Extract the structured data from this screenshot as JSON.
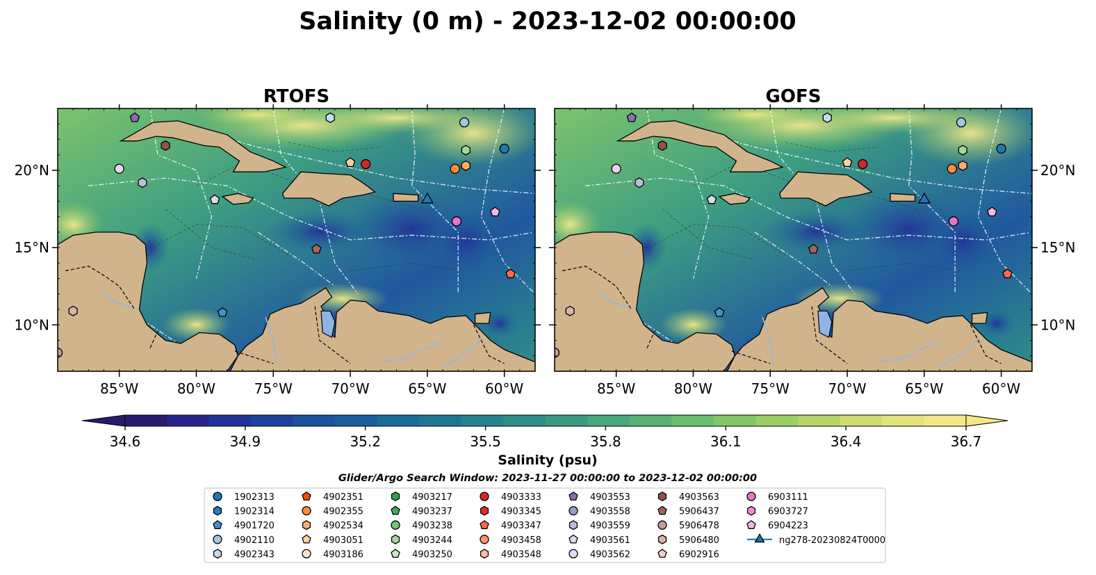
{
  "figure": {
    "title": "Salinity (0 m) - 2023-12-02 00:00:00",
    "colorbar_label": "Salinity (psu)",
    "search_window": "Glider/Argo Search Window: 2023-11-27 00:00:00 to 2023-12-02 00:00:00"
  },
  "chart_data": {
    "type": "heatmap",
    "variable": "Salinity",
    "units": "psu",
    "depth": "0 m",
    "panels": [
      {
        "title": "RTOFS"
      },
      {
        "title": "GOFS"
      }
    ],
    "lon_range": [
      -89,
      -58
    ],
    "lat_range": [
      7,
      24
    ],
    "x_ticks": [
      {
        "value": -85,
        "label": "85°W"
      },
      {
        "value": -80,
        "label": "80°W"
      },
      {
        "value": -75,
        "label": "75°W"
      },
      {
        "value": -70,
        "label": "70°W"
      },
      {
        "value": -65,
        "label": "65°W"
      },
      {
        "value": -60,
        "label": "60°W"
      }
    ],
    "y_ticks": [
      {
        "value": 10,
        "label": "10°N"
      },
      {
        "value": 15,
        "label": "15°N"
      },
      {
        "value": 20,
        "label": "20°N"
      }
    ],
    "colorbar": {
      "min": 34.6,
      "max": 36.7,
      "extend": "both",
      "ticks": [
        "34.6",
        "34.9",
        "35.2",
        "35.5",
        "35.8",
        "36.1",
        "36.4",
        "36.7"
      ],
      "colors": [
        "#2a1a6c",
        "#28248a",
        "#23329a",
        "#1e41a0",
        "#1b519f",
        "#1a5f9d",
        "#1b6c98",
        "#1f7893",
        "#26838e",
        "#2e8f88",
        "#3a9b83",
        "#48a77d",
        "#58b276",
        "#6cbc6f",
        "#83c667",
        "#9cce63",
        "#b6d566",
        "#cfdc70",
        "#e3e37d",
        "#f2e889"
      ]
    },
    "markers": [
      {
        "id": "1902313",
        "shape": "circle",
        "color": "#1f77b4",
        "lon": -60.0,
        "lat": 21.4
      },
      {
        "id": "1902314",
        "shape": "hexagon",
        "color": "#2b7bb9",
        "lon": null,
        "lat": null
      },
      {
        "id": "4901720",
        "shape": "pentagon",
        "color": "#4a8ed0",
        "lon": -78.3,
        "lat": 10.8
      },
      {
        "id": "4902110",
        "shape": "circle",
        "color": "#9ecae1",
        "lon": -62.6,
        "lat": 23.1
      },
      {
        "id": "4902343",
        "shape": "hexagon",
        "color": "#c6dbef",
        "lon": -71.3,
        "lat": 23.4
      },
      {
        "id": "4902351",
        "shape": "pentagon",
        "color": "#e6550d",
        "lon": null,
        "lat": null
      },
      {
        "id": "4902355",
        "shape": "circle",
        "color": "#fd8d3c",
        "lon": -63.2,
        "lat": 20.1
      },
      {
        "id": "4902534",
        "shape": "hexagon",
        "color": "#fdae6b",
        "lon": -62.5,
        "lat": 20.3
      },
      {
        "id": "4903051",
        "shape": "pentagon",
        "color": "#fdd0a2",
        "lon": -70.0,
        "lat": 20.5
      },
      {
        "id": "4903186",
        "shape": "circle",
        "color": "#fee6ce",
        "lon": null,
        "lat": null
      },
      {
        "id": "4903217",
        "shape": "hexagon",
        "color": "#31a354",
        "lon": null,
        "lat": null
      },
      {
        "id": "4903237",
        "shape": "pentagon",
        "color": "#41ab5d",
        "lon": null,
        "lat": null
      },
      {
        "id": "4903238",
        "shape": "circle",
        "color": "#74c476",
        "lon": null,
        "lat": null
      },
      {
        "id": "4903244",
        "shape": "hexagon",
        "color": "#a1d99b",
        "lon": -62.5,
        "lat": 21.3
      },
      {
        "id": "4903250",
        "shape": "pentagon",
        "color": "#c7e9c0",
        "lon": null,
        "lat": null
      },
      {
        "id": "4903333",
        "shape": "circle",
        "color": "#d62728",
        "lon": -69.0,
        "lat": 20.4
      },
      {
        "id": "4903345",
        "shape": "hexagon",
        "color": "#de2d26",
        "lon": null,
        "lat": null
      },
      {
        "id": "4903347",
        "shape": "pentagon",
        "color": "#fb6a4a",
        "lon": -59.6,
        "lat": 13.3
      },
      {
        "id": "4903458",
        "shape": "circle",
        "color": "#fc9272",
        "lon": null,
        "lat": null
      },
      {
        "id": "4903548",
        "shape": "hexagon",
        "color": "#fcbba1",
        "lon": null,
        "lat": null
      },
      {
        "id": "4903553",
        "shape": "pentagon",
        "color": "#8c6bb1",
        "lon": -84.0,
        "lat": 23.4
      },
      {
        "id": "4903558",
        "shape": "circle",
        "color": "#9e9ac8",
        "lon": null,
        "lat": null
      },
      {
        "id": "4903559",
        "shape": "hexagon",
        "color": "#bcbddc",
        "lon": -83.5,
        "lat": 19.2
      },
      {
        "id": "4903561",
        "shape": "pentagon",
        "color": "#dadaeb",
        "lon": -78.8,
        "lat": 18.1
      },
      {
        "id": "4903562",
        "shape": "circle",
        "color": "#e6d5f5",
        "lon": -85.0,
        "lat": 20.1
      },
      {
        "id": "4903563",
        "shape": "hexagon",
        "color": "#8c564b",
        "lon": -82.0,
        "lat": 21.6
      },
      {
        "id": "5906437",
        "shape": "pentagon",
        "color": "#a0685a",
        "lon": -72.2,
        "lat": 14.9
      },
      {
        "id": "5906478",
        "shape": "circle",
        "color": "#c49c94",
        "lon": -89.0,
        "lat": 8.2
      },
      {
        "id": "5906480",
        "shape": "hexagon",
        "color": "#d9b3a8",
        "lon": -88.0,
        "lat": 10.9
      },
      {
        "id": "6902916",
        "shape": "pentagon",
        "color": "#f2d0c6",
        "lon": null,
        "lat": null
      },
      {
        "id": "6903111",
        "shape": "circle",
        "color": "#e377c2",
        "lon": -63.1,
        "lat": 16.7
      },
      {
        "id": "6903727",
        "shape": "hexagon",
        "color": "#f08fd0",
        "lon": null,
        "lat": null
      },
      {
        "id": "6904223",
        "shape": "pentagon",
        "color": "#f7b6e3",
        "lon": -60.6,
        "lat": 17.3
      },
      {
        "id": "ng278-20230824T0000",
        "shape": "triangle",
        "color": "#1f77b4",
        "lon": -65.0,
        "lat": 18.1
      }
    ]
  }
}
